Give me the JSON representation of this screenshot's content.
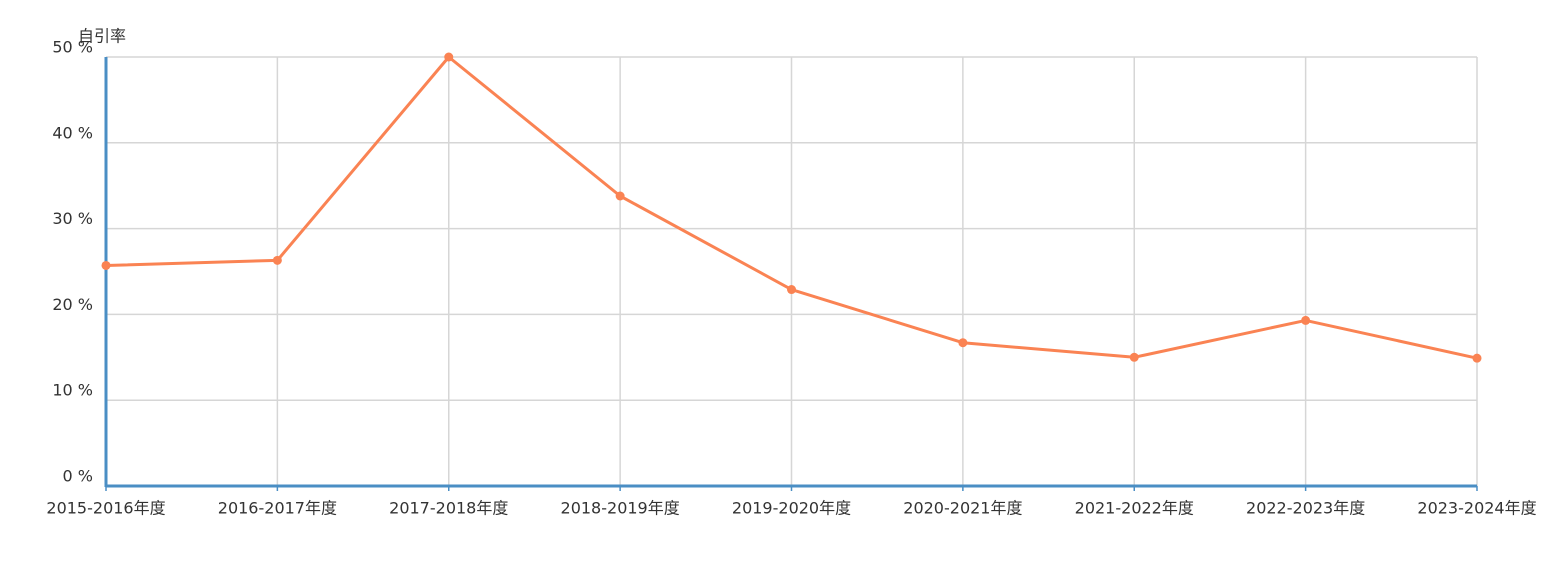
{
  "chart_data": {
    "type": "line",
    "y_axis_label": "自引率",
    "categories": [
      "2015-2016年度",
      "2016-2017年度",
      "2017-2018年度",
      "2018-2019年度",
      "2019-2020年度",
      "2020-2021年度",
      "2021-2022年度",
      "2022-2023年度",
      "2023-2024年度"
    ],
    "values": [
      25.7,
      26.3,
      50,
      33.8,
      22.9,
      16.7,
      15.0,
      19.3,
      14.9
    ],
    "color": "#fa8353",
    "axis_color": "#4a8ec4",
    "ylim": [
      0,
      50
    ],
    "yticks": [
      {
        "value": 0,
        "label": "0 %"
      },
      {
        "value": 10,
        "label": "10 %"
      },
      {
        "value": 20,
        "label": "20 %"
      },
      {
        "value": 30,
        "label": "30 %"
      },
      {
        "value": 40,
        "label": "40 %"
      },
      {
        "value": 50,
        "label": "50 %"
      }
    ],
    "grid": true
  }
}
